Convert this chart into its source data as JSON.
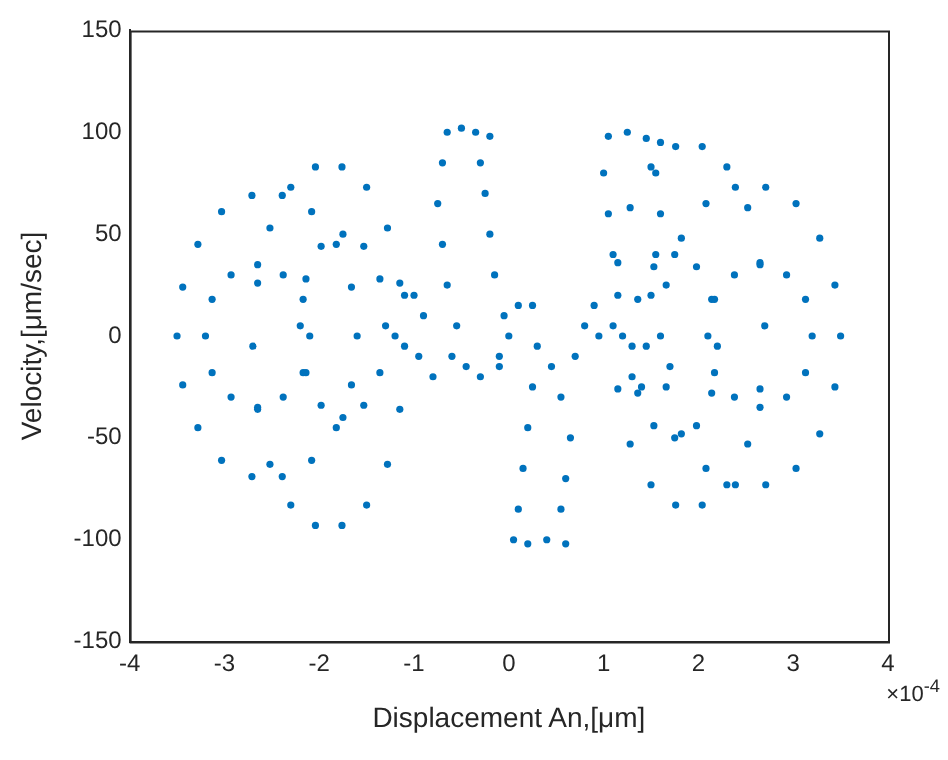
{
  "chart_data": {
    "type": "scatter",
    "xlabel": "Displacement An,[μm]",
    "ylabel": "Velocity,[μm/sec]",
    "annotations": [
      "×10$^{-4}$"
    ],
    "xlim": [
      -4,
      4
    ],
    "xticks": [
      -4,
      -3,
      -2,
      -1,
      0,
      1,
      2,
      3,
      4
    ],
    "ylim": [
      -150,
      150
    ],
    "yticks": [
      -150,
      -100,
      -50,
      0,
      50,
      100,
      150
    ],
    "grid": false,
    "legend": false,
    "marker": "circle",
    "series": [
      {
        "color": "#0072bd",
        "x": [
          -1.6,
          -1.66,
          -1.82,
          -2.08,
          -2.39,
          -2.71,
          -3.03,
          -3.28,
          -3.44,
          -3.5,
          -3.44,
          -3.28,
          -3.03,
          -2.71,
          -2.39,
          -2.08,
          -1.82,
          -1.66,
          -2.1,
          -2.17,
          -2.38,
          -2.65,
          -2.93,
          -3.13,
          -3.2,
          -3.13,
          -2.93,
          -2.65,
          -2.38,
          -2.17,
          -1.1,
          -1.15,
          -1.28,
          -1.5,
          -1.76,
          -2.04,
          -2.3,
          -2.52,
          -2.65,
          -2.7,
          -2.65,
          -2.52,
          -2.3,
          -2.04,
          -1.76,
          -1.5,
          -1.28,
          -1.15,
          -1.3,
          -1.36,
          -1.53,
          -1.75,
          -1.98,
          -2.14,
          -2.2,
          -2.14,
          -1.98,
          -1.75,
          -1.53,
          -1.36,
          -0.65,
          -0.5,
          -0.35,
          -0.2,
          -0.7,
          -0.3,
          -0.75,
          -0.25,
          -0.7,
          -0.2,
          -0.65,
          -0.15,
          -0.55,
          -0.05,
          -0.45,
          -0.3,
          -0.1,
          -0.6,
          -0.9,
          -1.0,
          -1.1,
          -1.2,
          -0.95,
          -0.8,
          0.05,
          0.2,
          0.4,
          0.6,
          0.1,
          0.55,
          0.15,
          0.6,
          0.2,
          0.65,
          0.25,
          0.55,
          0.3,
          0.7,
          0.1,
          0.25,
          0.45,
          0.8,
          0.9,
          0.95,
          -0.1,
          0.0,
          1.05,
          1.25,
          1.45,
          1.6,
          1.0,
          1.55,
          1.05,
          1.6,
          1.1,
          1.55,
          1.15,
          1.5,
          1.2,
          1.45,
          1.3,
          1.4,
          1.7,
          1.6,
          1.66,
          1.82,
          2.08,
          2.39,
          2.71,
          3.03,
          3.28,
          3.44,
          3.5,
          3.44,
          3.28,
          3.03,
          2.71,
          2.39,
          2.08,
          1.82,
          1.66,
          2.1,
          2.17,
          2.38,
          2.65,
          2.93,
          3.13,
          3.2,
          3.13,
          2.93,
          2.65,
          2.38,
          2.17,
          1.1,
          1.15,
          1.28,
          1.5,
          1.76,
          2.04,
          2.3,
          2.52,
          2.65,
          2.7,
          2.65,
          2.52,
          2.3,
          2.04,
          1.76,
          1.5,
          1.28,
          1.15,
          1.3,
          1.36,
          1.53,
          1.75,
          1.98,
          2.14,
          2.2,
          2.14,
          1.98,
          1.75,
          1.53,
          1.36
        ],
        "values": [
          0,
          24,
          45,
          61,
          69,
          69,
          61,
          45,
          24,
          0,
          -24,
          -45,
          -61,
          -69,
          -69,
          -61,
          -45,
          -24,
          0,
          18,
          30,
          35,
          30,
          18,
          0,
          -18,
          -30,
          -35,
          -30,
          -18,
          -5,
          26,
          53,
          73,
          83,
          83,
          73,
          53,
          26,
          -5,
          -36,
          -63,
          -83,
          -93,
          -93,
          -83,
          -63,
          -36,
          5,
          28,
          44,
          50,
          44,
          28,
          5,
          -18,
          -34,
          -40,
          -34,
          -18,
          100,
          102,
          100,
          98,
          85,
          85,
          65,
          70,
          45,
          50,
          25,
          30,
          5,
          10,
          -15,
          -20,
          -10,
          -10,
          10,
          20,
          20,
          0,
          -10,
          -20,
          -100,
          -102,
          -100,
          -102,
          -85,
          -85,
          -65,
          -70,
          -45,
          -50,
          -25,
          -30,
          -5,
          -10,
          15,
          15,
          -15,
          5,
          15,
          0,
          -15,
          0,
          98,
          100,
          97,
          95,
          80,
          80,
          60,
          60,
          40,
          40,
          20,
          20,
          0,
          -5,
          -20,
          -25,
          -15,
          0,
          -25,
          -48,
          -65,
          -73,
          -73,
          -65,
          -48,
          -25,
          0,
          25,
          48,
          65,
          73,
          73,
          65,
          48,
          25,
          0,
          -18,
          -30,
          -35,
          -30,
          -18,
          0,
          18,
          30,
          35,
          30,
          18,
          5,
          -26,
          -53,
          -73,
          -83,
          -83,
          -73,
          -53,
          -26,
          5,
          36,
          63,
          83,
          93,
          93,
          83,
          63,
          36,
          -5,
          -28,
          -44,
          -50,
          -44,
          -28,
          -5,
          18,
          34,
          40,
          34,
          18
        ]
      }
    ]
  }
}
